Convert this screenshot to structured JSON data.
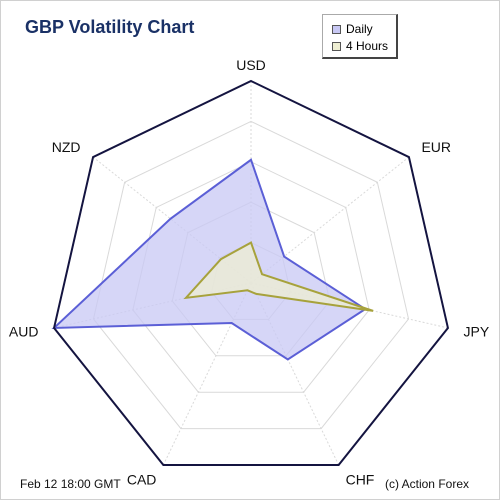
{
  "chart_data": {
    "type": "radar",
    "title": "GBP Volatility Chart",
    "axes": [
      "USD",
      "EUR",
      "JPY",
      "CHF",
      "CAD",
      "AUD",
      "NZD"
    ],
    "rlim": [
      0,
      10
    ],
    "grid": true,
    "legend_position": "top-right",
    "series": [
      {
        "name": "Daily",
        "values": [
          6.1,
          2.1,
          5.8,
          4.2,
          2.2,
          10.0,
          5.1
        ],
        "color": "#5b5fd6",
        "fill": "#c8c8f4"
      },
      {
        "name": "4 Hours",
        "values": [
          2.0,
          0.7,
          6.2,
          0.6,
          0.4,
          3.3,
          1.9
        ],
        "color": "#a7a23c",
        "fill": "#eeeed2"
      }
    ]
  },
  "footer": {
    "date": "Feb 12  18:00 GMT",
    "copyright": "(c) Action Forex"
  },
  "colors": {
    "title": "#1a3166",
    "outline": "#141440",
    "grid": "#d9d9d9"
  }
}
